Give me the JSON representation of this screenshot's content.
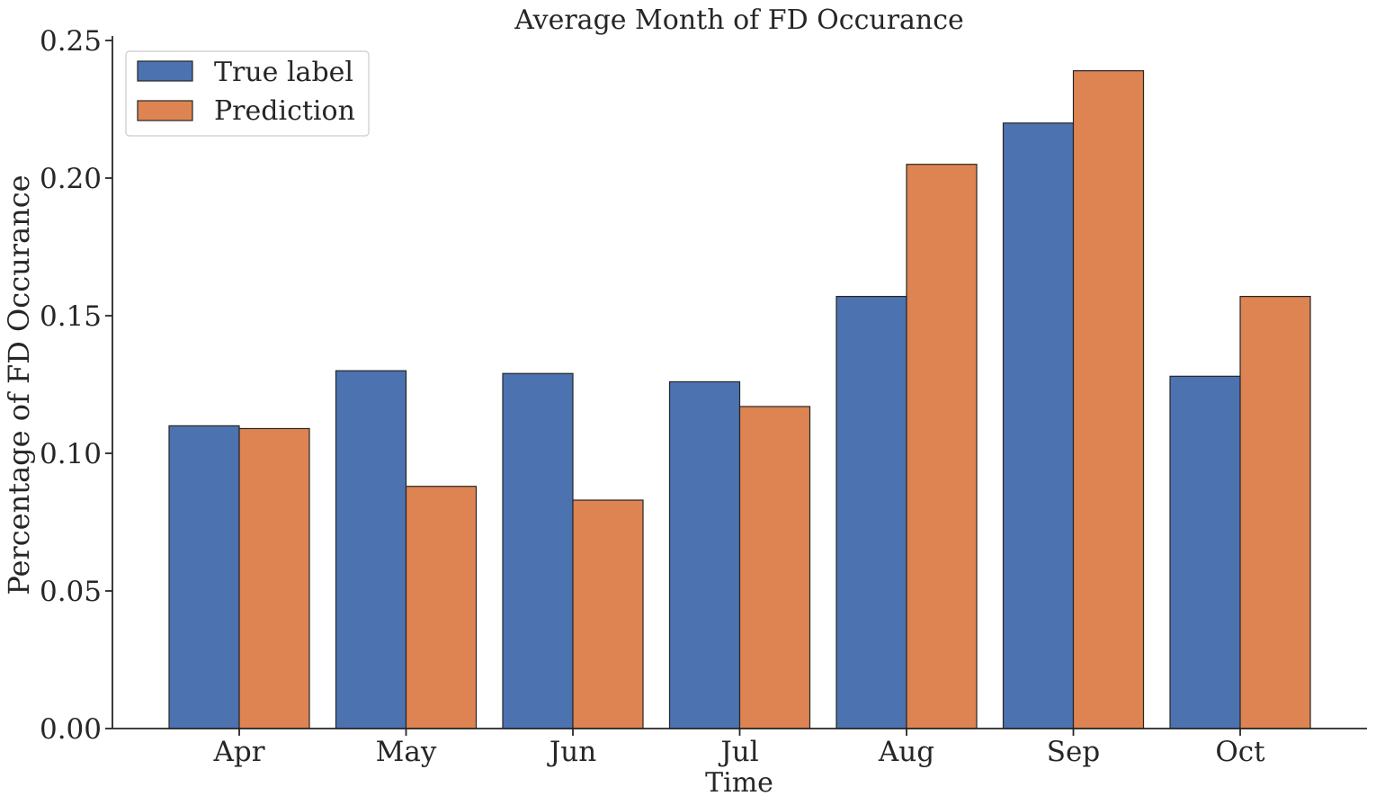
{
  "chart_data": {
    "type": "bar",
    "title": "Average Month of FD Occurance",
    "xlabel": "Time",
    "ylabel": "Percentage of FD Occurance",
    "categories": [
      "Apr",
      "May",
      "Jun",
      "Jul",
      "Aug",
      "Sep",
      "Oct"
    ],
    "series": [
      {
        "name": "True label",
        "color": "#4c72b0",
        "values": [
          0.11,
          0.13,
          0.129,
          0.126,
          0.157,
          0.22,
          0.128
        ]
      },
      {
        "name": "Prediction",
        "color": "#dd8452",
        "values": [
          0.109,
          0.088,
          0.083,
          0.117,
          0.205,
          0.239,
          0.157
        ]
      }
    ],
    "ylim": [
      0,
      0.25
    ],
    "yticks": [
      0.0,
      0.05,
      0.1,
      0.15,
      0.2,
      0.25
    ],
    "ytick_labels": [
      "0.00",
      "0.05",
      "0.10",
      "0.15",
      "0.20",
      "0.25"
    ],
    "grid": false,
    "legend_position": "top-left"
  }
}
